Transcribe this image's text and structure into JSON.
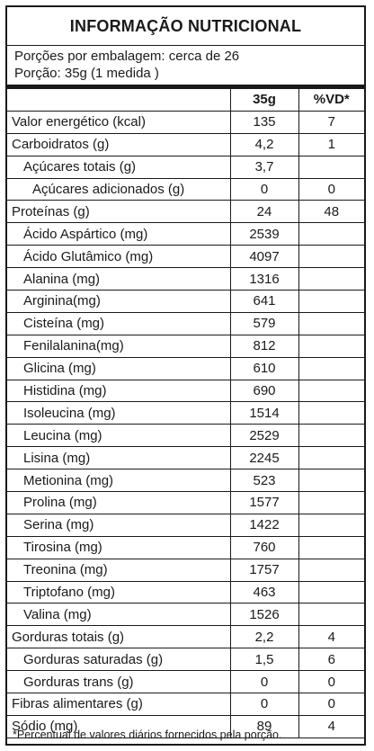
{
  "title": "INFORMAÇÃO NUTRICIONAL",
  "servings_per_package": "Porções por embalagem: cerca de 26",
  "serving_size": "Porção: 35g (1 medida )",
  "columns": {
    "amount": "35g",
    "dv": "%VD*"
  },
  "rows": [
    {
      "name": "Valor energético (kcal)",
      "amount": "135",
      "dv": "7",
      "indent": 0
    },
    {
      "name": "Carboidratos (g)",
      "amount": "4,2",
      "dv": "1",
      "indent": 0
    },
    {
      "name": "Açúcares totais (g)",
      "amount": "3,7",
      "dv": "",
      "indent": 1
    },
    {
      "name": "Açúcares adicionados (g)",
      "amount": "0",
      "dv": "0",
      "indent": 2
    },
    {
      "name": "Proteínas (g)",
      "amount": "24",
      "dv": "48",
      "indent": 0
    },
    {
      "name": "Ácido Aspártico (mg)",
      "amount": "2539",
      "dv": "",
      "indent": 1
    },
    {
      "name": "Ácido Glutâmico (mg)",
      "amount": "4097",
      "dv": "",
      "indent": 1
    },
    {
      "name": "Alanina (mg)",
      "amount": "1316",
      "dv": "",
      "indent": 1
    },
    {
      "name": "Arginina(mg)",
      "amount": "641",
      "dv": "",
      "indent": 1
    },
    {
      "name": "Cisteína (mg)",
      "amount": "579",
      "dv": "",
      "indent": 1
    },
    {
      "name": "Fenilalanina(mg)",
      "amount": "812",
      "dv": "",
      "indent": 1
    },
    {
      "name": "Glicina (mg)",
      "amount": "610",
      "dv": "",
      "indent": 1
    },
    {
      "name": "Histidina (mg)",
      "amount": "690",
      "dv": "",
      "indent": 1
    },
    {
      "name": "Isoleucina (mg)",
      "amount": "1514",
      "dv": "",
      "indent": 1
    },
    {
      "name": "Leucina (mg)",
      "amount": "2529",
      "dv": "",
      "indent": 1
    },
    {
      "name": "Lisina (mg)",
      "amount": "2245",
      "dv": "",
      "indent": 1
    },
    {
      "name": "Metionina (mg)",
      "amount": "523",
      "dv": "",
      "indent": 1
    },
    {
      "name": "Prolina (mg)",
      "amount": "1577",
      "dv": "",
      "indent": 1
    },
    {
      "name": "Serina (mg)",
      "amount": "1422",
      "dv": "",
      "indent": 1
    },
    {
      "name": "Tirosina (mg)",
      "amount": "760",
      "dv": "",
      "indent": 1
    },
    {
      "name": "Treonina (mg)",
      "amount": "1757",
      "dv": "",
      "indent": 1
    },
    {
      "name": "Triptofano (mg)",
      "amount": "463",
      "dv": "",
      "indent": 1
    },
    {
      "name": "Valina (mg)",
      "amount": "1526",
      "dv": "",
      "indent": 1
    },
    {
      "name": "Gorduras totais (g)",
      "amount": "2,2",
      "dv": "4",
      "indent": 0
    },
    {
      "name": "Gorduras saturadas (g)",
      "amount": "1,5",
      "dv": "6",
      "indent": 1
    },
    {
      "name": "Gorduras trans (g)",
      "amount": "0",
      "dv": "0",
      "indent": 1
    },
    {
      "name": "Fibras alimentares (g)",
      "amount": "0",
      "dv": "0",
      "indent": 0
    },
    {
      "name": "Sódio (mg)",
      "amount": "89",
      "dv": "4",
      "indent": 0
    }
  ],
  "footnote": "*Percentual de valores diários fornecidos pela porção."
}
